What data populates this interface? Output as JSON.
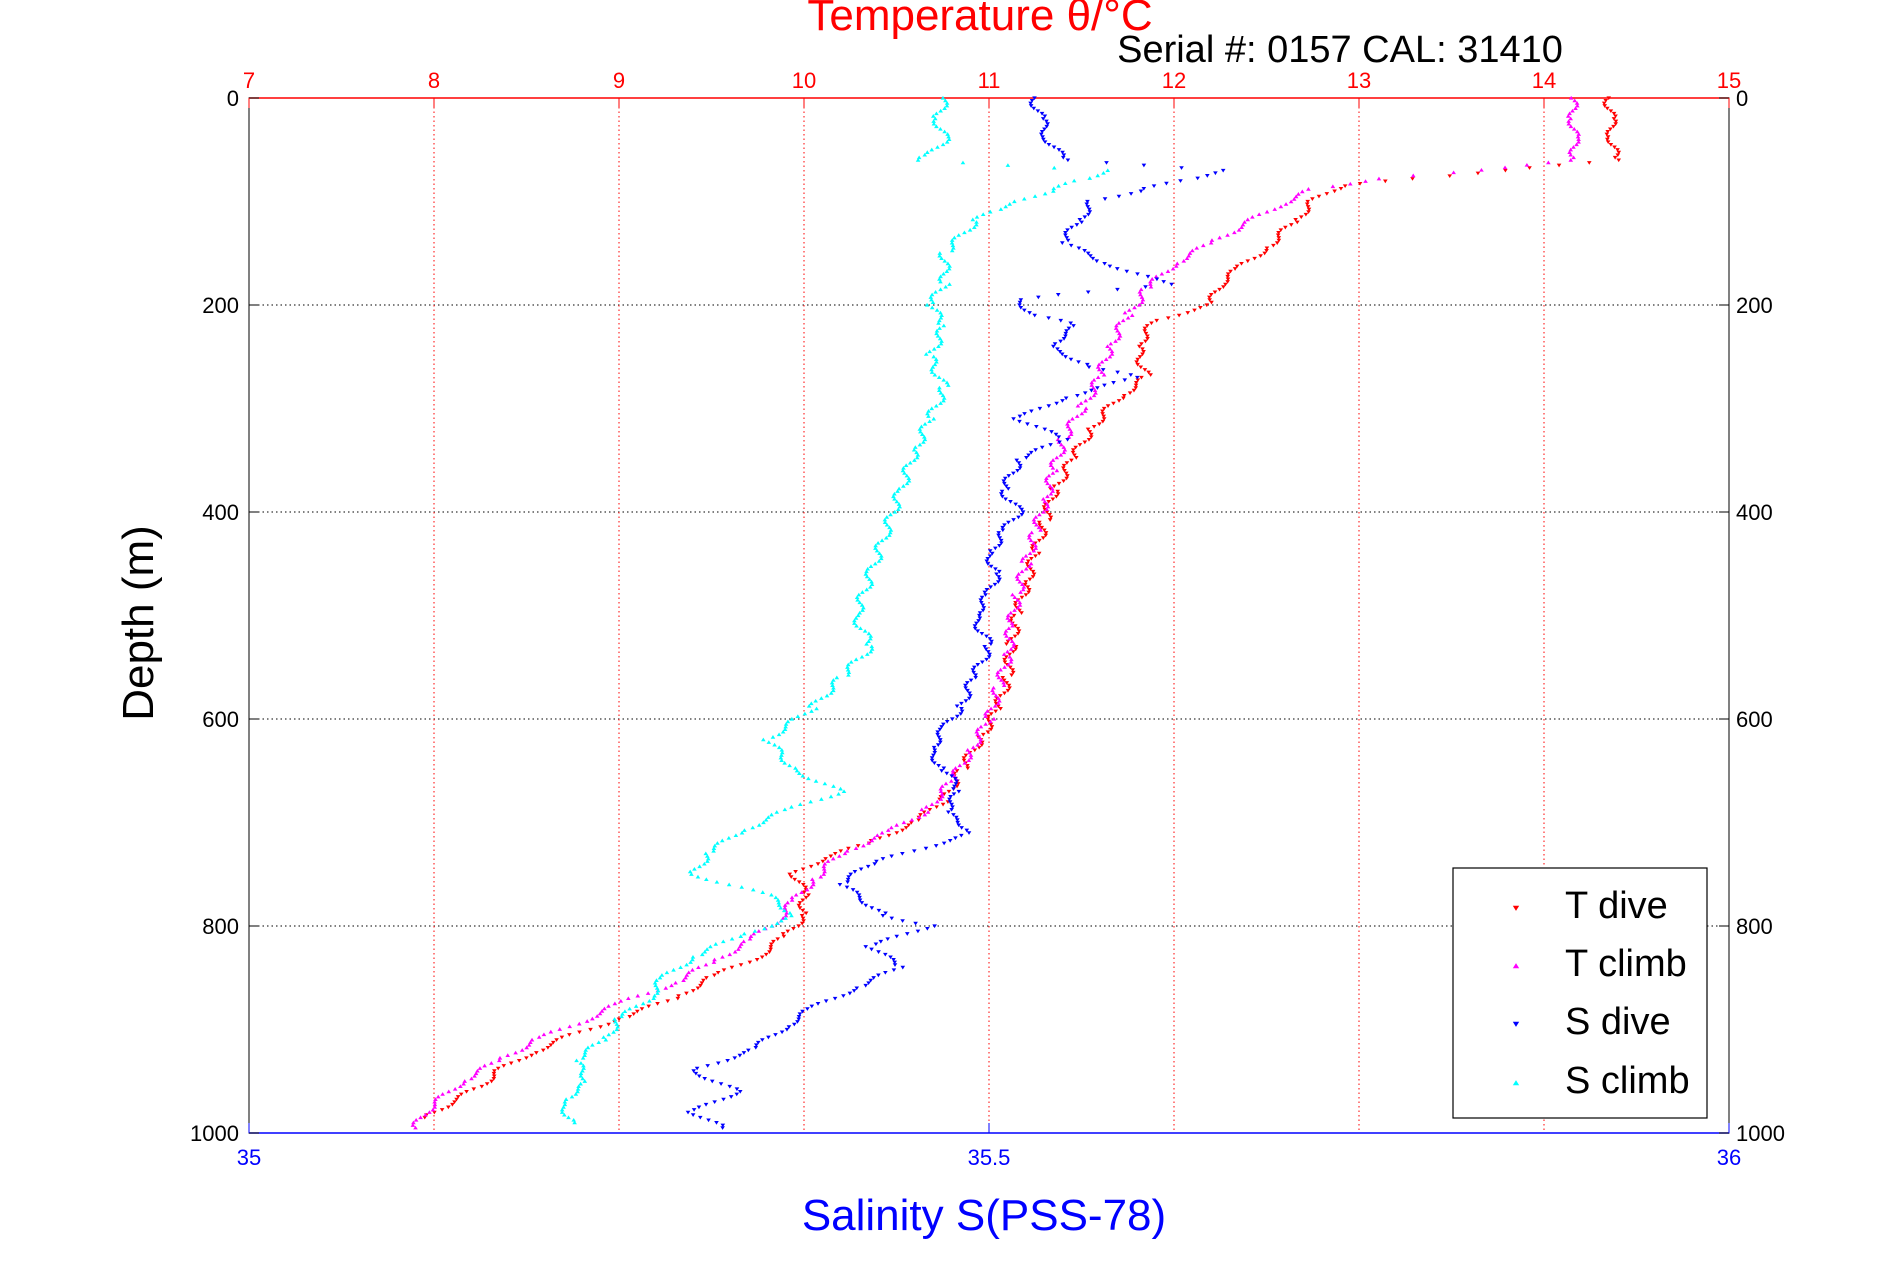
{
  "chart_data": {
    "type": "scatter",
    "title": "Temperature θ/°C",
    "subtitle": "Serial #: 0157  CAL: 31410",
    "ylabel": "Depth (m)",
    "xlabel": "Salinity S(PSS-78)",
    "ylim": [
      0,
      1000
    ],
    "y_reversed": true,
    "y_ticks": [
      "0",
      "200",
      "400",
      "600",
      "800",
      "1000"
    ],
    "x_top": {
      "lim": [
        7,
        15
      ],
      "ticks": [
        "7",
        "8",
        "9",
        "10",
        "11",
        "12",
        "13",
        "14",
        "15"
      ],
      "color": "#ff0000"
    },
    "x_bottom": {
      "lim": [
        35,
        36
      ],
      "ticks": [
        "35",
        "35.5",
        "36"
      ],
      "color": "#0000ff"
    },
    "grid": true,
    "legend_position": "bottom-right",
    "series": [
      {
        "name": "T dive",
        "color": "#ff0000",
        "axis": "top",
        "points": [
          [
            14.35,
            0
          ],
          [
            14.36,
            20
          ],
          [
            14.37,
            40
          ],
          [
            14.38,
            60
          ],
          [
            13.8,
            70
          ],
          [
            13.3,
            78
          ],
          [
            12.9,
            85
          ],
          [
            12.75,
            100
          ],
          [
            12.65,
            120
          ],
          [
            12.5,
            145
          ],
          [
            12.35,
            165
          ],
          [
            12.25,
            180
          ],
          [
            12.2,
            200
          ],
          [
            11.9,
            215
          ],
          [
            11.8,
            240
          ],
          [
            11.85,
            270
          ],
          [
            11.7,
            290
          ],
          [
            11.55,
            320
          ],
          [
            11.45,
            350
          ],
          [
            11.35,
            380
          ],
          [
            11.3,
            410
          ],
          [
            11.25,
            440
          ],
          [
            11.2,
            470
          ],
          [
            11.15,
            500
          ],
          [
            11.12,
            530
          ],
          [
            11.1,
            560
          ],
          [
            11.05,
            590
          ],
          [
            10.95,
            620
          ],
          [
            10.85,
            650
          ],
          [
            10.75,
            680
          ],
          [
            10.6,
            700
          ],
          [
            10.35,
            720
          ],
          [
            10.1,
            735
          ],
          [
            9.95,
            750
          ],
          [
            10.0,
            770
          ],
          [
            10.0,
            790
          ],
          [
            9.9,
            810
          ],
          [
            9.75,
            830
          ],
          [
            9.5,
            850
          ],
          [
            9.3,
            870
          ],
          [
            9.0,
            890
          ],
          [
            8.75,
            905
          ],
          [
            8.5,
            925
          ],
          [
            8.35,
            940
          ],
          [
            8.25,
            955
          ],
          [
            8.1,
            970
          ],
          [
            7.95,
            985
          ]
        ]
      },
      {
        "name": "T climb",
        "color": "#ff00ff",
        "axis": "top",
        "points": [
          [
            14.15,
            0
          ],
          [
            14.16,
            20
          ],
          [
            14.16,
            40
          ],
          [
            14.17,
            60
          ],
          [
            13.5,
            72
          ],
          [
            13.1,
            78
          ],
          [
            12.75,
            88
          ],
          [
            12.55,
            105
          ],
          [
            12.4,
            120
          ],
          [
            12.2,
            140
          ],
          [
            12.0,
            160
          ],
          [
            11.85,
            185
          ],
          [
            11.75,
            210
          ],
          [
            11.65,
            240
          ],
          [
            11.6,
            270
          ],
          [
            11.5,
            300
          ],
          [
            11.4,
            330
          ],
          [
            11.35,
            360
          ],
          [
            11.3,
            390
          ],
          [
            11.25,
            420
          ],
          [
            11.2,
            450
          ],
          [
            11.15,
            480
          ],
          [
            11.12,
            510
          ],
          [
            11.1,
            540
          ],
          [
            11.05,
            570
          ],
          [
            11.0,
            600
          ],
          [
            10.9,
            630
          ],
          [
            10.8,
            660
          ],
          [
            10.65,
            690
          ],
          [
            10.45,
            710
          ],
          [
            10.2,
            730
          ],
          [
            10.05,
            755
          ],
          [
            9.95,
            775
          ],
          [
            9.85,
            795
          ],
          [
            9.7,
            815
          ],
          [
            9.5,
            835
          ],
          [
            9.3,
            855
          ],
          [
            9.0,
            875
          ],
          [
            8.8,
            892
          ],
          [
            8.55,
            910
          ],
          [
            8.35,
            930
          ],
          [
            8.15,
            950
          ],
          [
            8.05,
            965
          ],
          [
            7.95,
            980
          ],
          [
            7.9,
            995
          ]
        ]
      },
      {
        "name": "S dive",
        "color": "#0000ff",
        "axis": "bottom",
        "points": [
          [
            35.53,
            0
          ],
          [
            35.535,
            20
          ],
          [
            35.54,
            40
          ],
          [
            35.55,
            60
          ],
          [
            35.66,
            70
          ],
          [
            35.63,
            80
          ],
          [
            35.6,
            90
          ],
          [
            35.57,
            100
          ],
          [
            35.56,
            120
          ],
          [
            35.55,
            140
          ],
          [
            35.58,
            160
          ],
          [
            35.62,
            180
          ],
          [
            35.55,
            190
          ],
          [
            35.52,
            195
          ],
          [
            35.53,
            210
          ],
          [
            35.56,
            220
          ],
          [
            35.54,
            240
          ],
          [
            35.57,
            260
          ],
          [
            35.6,
            270
          ],
          [
            35.55,
            290
          ],
          [
            35.52,
            310
          ],
          [
            35.55,
            330
          ],
          [
            35.52,
            350
          ],
          [
            35.51,
            380
          ],
          [
            35.52,
            400
          ],
          [
            35.51,
            420
          ],
          [
            35.5,
            440
          ],
          [
            35.505,
            460
          ],
          [
            35.5,
            480
          ],
          [
            35.49,
            500
          ],
          [
            35.5,
            530
          ],
          [
            35.49,
            560
          ],
          [
            35.48,
            590
          ],
          [
            35.47,
            610
          ],
          [
            35.46,
            630
          ],
          [
            35.47,
            650
          ],
          [
            35.48,
            670
          ],
          [
            35.47,
            690
          ],
          [
            35.49,
            710
          ],
          [
            35.42,
            740
          ],
          [
            35.4,
            760
          ],
          [
            35.43,
            790
          ],
          [
            35.46,
            800
          ],
          [
            35.42,
            820
          ],
          [
            35.44,
            840
          ],
          [
            35.41,
            860
          ],
          [
            35.38,
            880
          ],
          [
            35.36,
            900
          ],
          [
            35.34,
            920
          ],
          [
            35.3,
            940
          ],
          [
            35.33,
            960
          ],
          [
            35.3,
            980
          ],
          [
            35.32,
            995
          ]
        ]
      },
      {
        "name": "S climb",
        "color": "#00ffff",
        "axis": "bottom",
        "points": [
          [
            35.47,
            0
          ],
          [
            35.465,
            20
          ],
          [
            35.47,
            40
          ],
          [
            35.46,
            55
          ],
          [
            35.45,
            60
          ],
          [
            35.58,
            70
          ],
          [
            35.56,
            80
          ],
          [
            35.54,
            90
          ],
          [
            35.52,
            100
          ],
          [
            35.5,
            110
          ],
          [
            35.49,
            120
          ],
          [
            35.47,
            150
          ],
          [
            35.47,
            180
          ],
          [
            35.46,
            200
          ],
          [
            35.47,
            220
          ],
          [
            35.46,
            250
          ],
          [
            35.47,
            280
          ],
          [
            35.46,
            310
          ],
          [
            35.45,
            340
          ],
          [
            35.44,
            380
          ],
          [
            35.43,
            420
          ],
          [
            35.42,
            460
          ],
          [
            35.41,
            500
          ],
          [
            35.42,
            530
          ],
          [
            35.4,
            560
          ],
          [
            35.38,
            590
          ],
          [
            35.35,
            620
          ],
          [
            35.37,
            650
          ],
          [
            35.4,
            670
          ],
          [
            35.36,
            690
          ],
          [
            35.33,
            710
          ],
          [
            35.31,
            730
          ],
          [
            35.3,
            750
          ],
          [
            35.35,
            770
          ],
          [
            35.37,
            790
          ],
          [
            35.33,
            810
          ],
          [
            35.3,
            830
          ],
          [
            35.28,
            850
          ],
          [
            35.27,
            870
          ],
          [
            35.25,
            890
          ],
          [
            35.24,
            910
          ],
          [
            35.22,
            930
          ],
          [
            35.23,
            950
          ],
          [
            35.21,
            970
          ],
          [
            35.22,
            990
          ]
        ]
      }
    ]
  }
}
